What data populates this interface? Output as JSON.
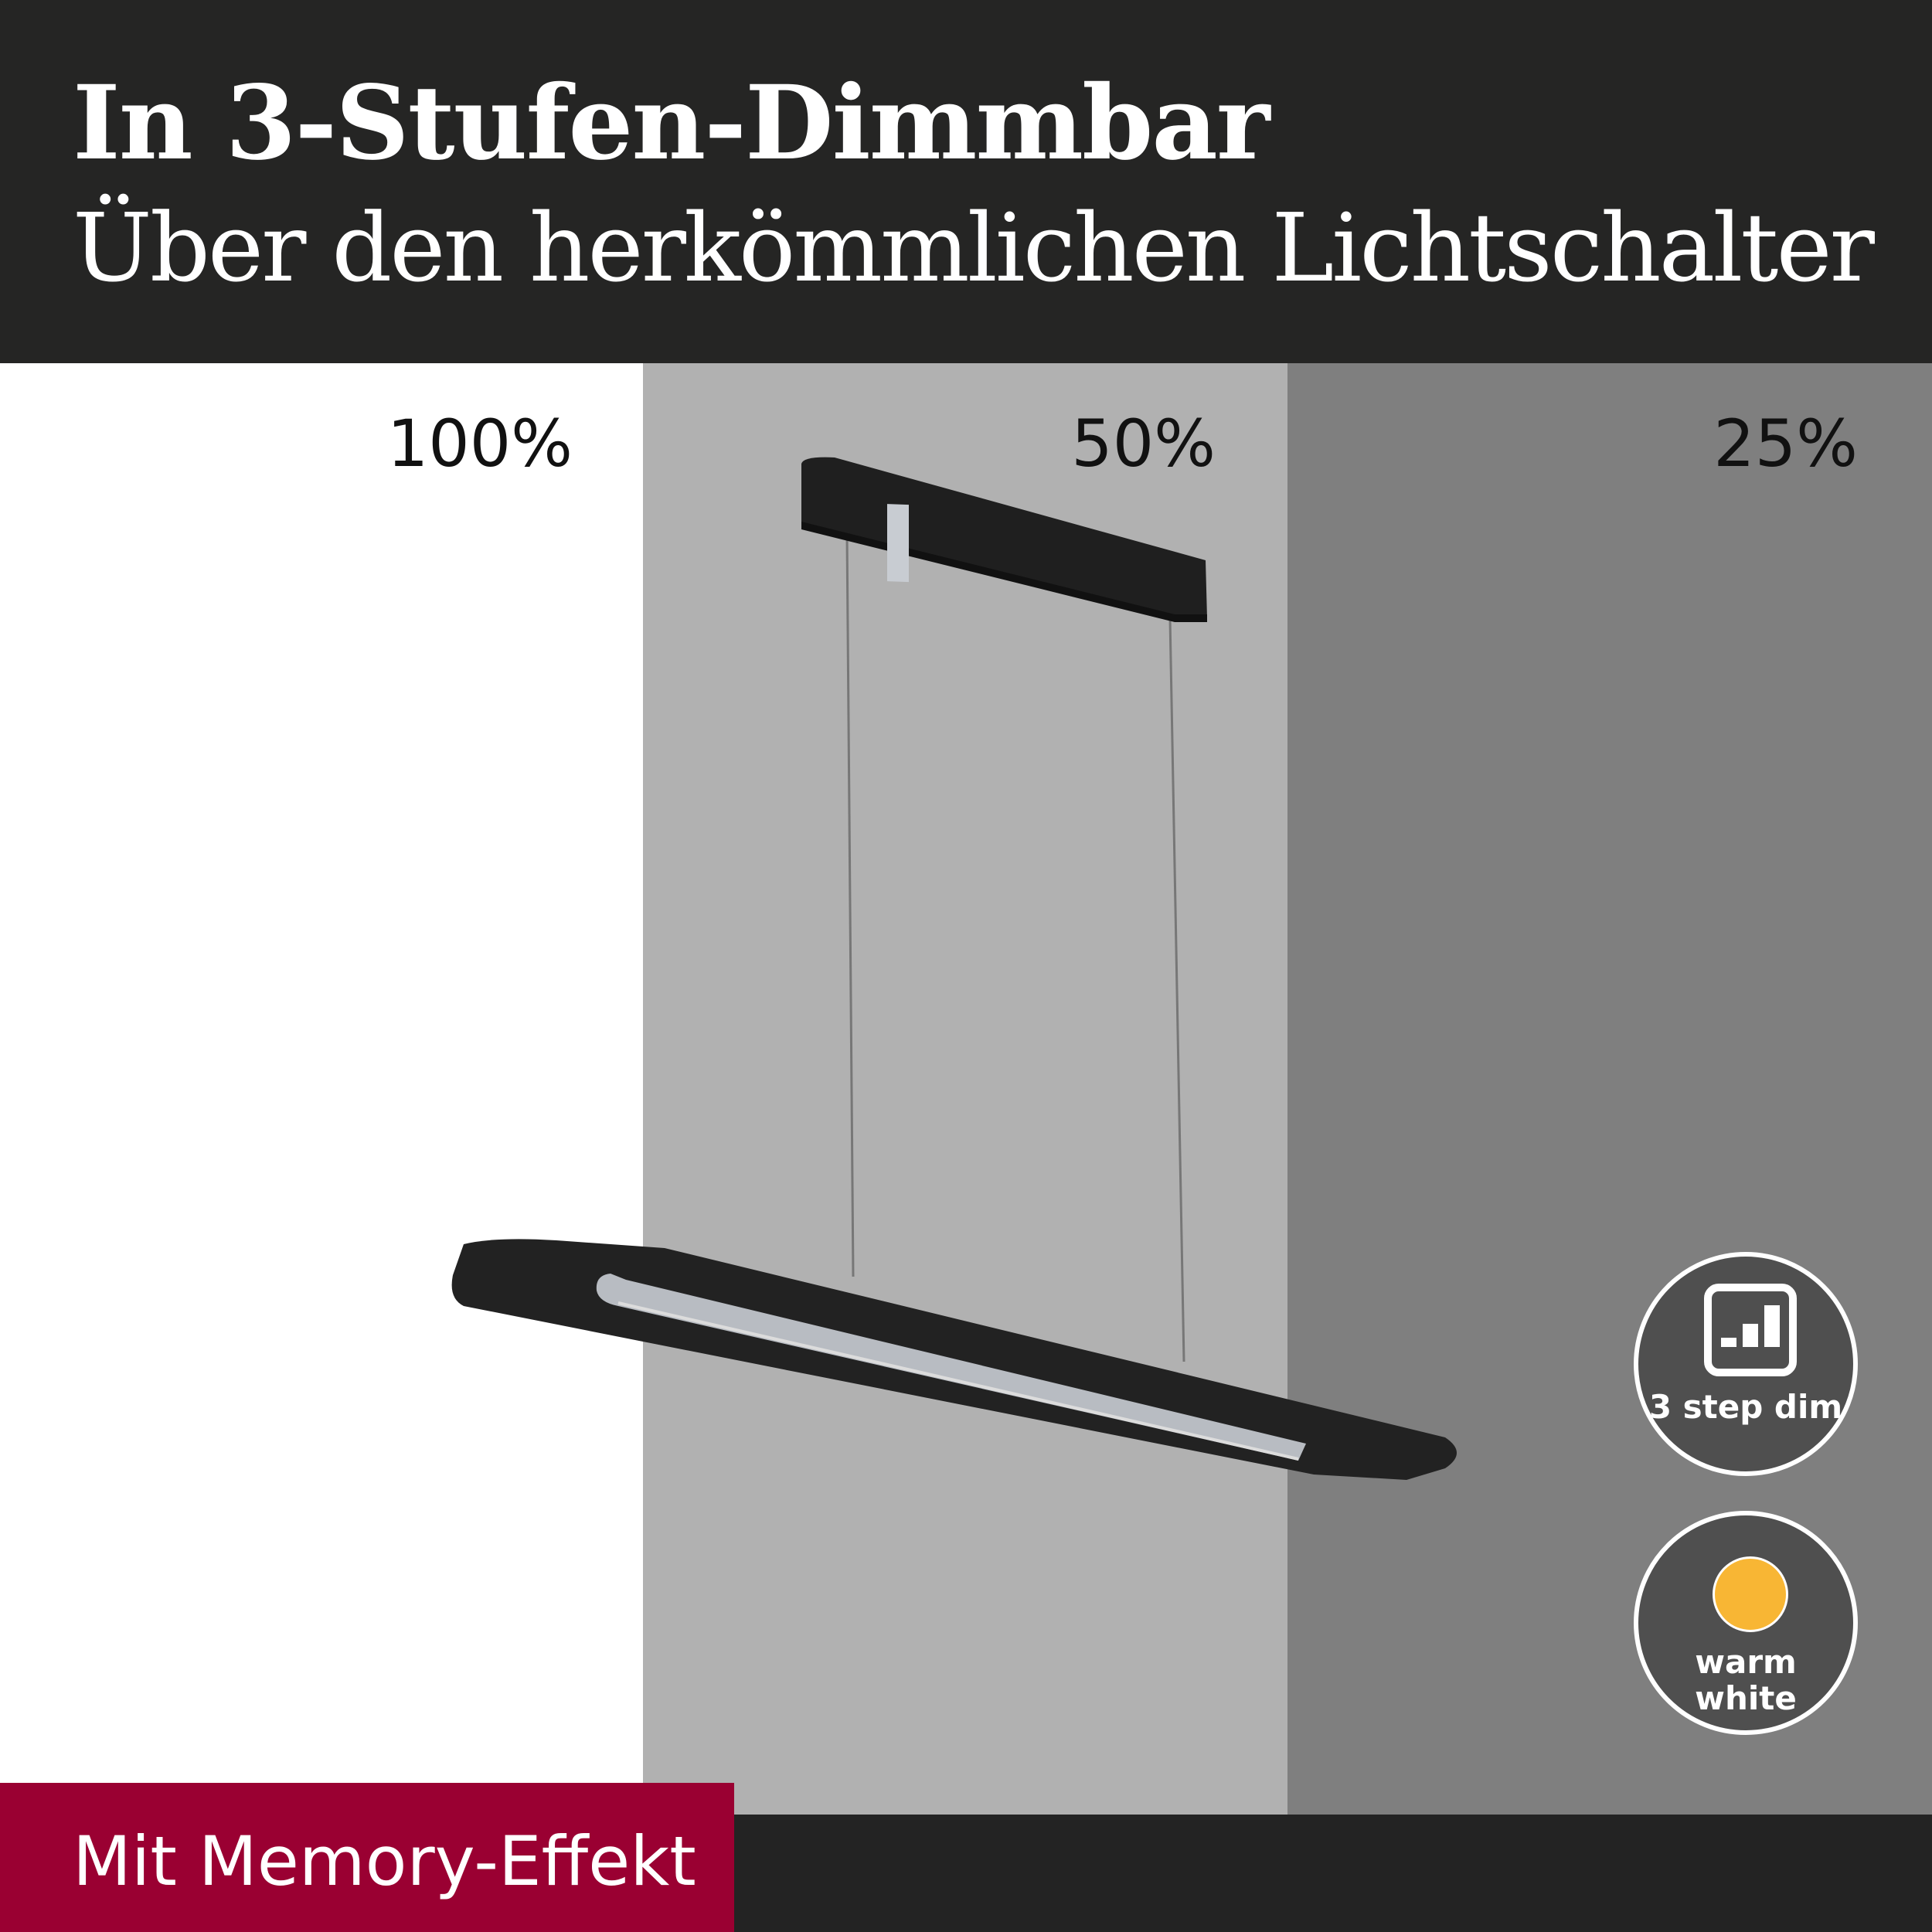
{
  "header": {
    "title": "In 3-Stufen-Dimmbar",
    "subtitle": "Über den herkömmlichen Lichtschalter"
  },
  "panels": [
    {
      "label": "100%",
      "color": "#ffffff"
    },
    {
      "label": "50%",
      "color": "#b1b1b1"
    },
    {
      "label": "25%",
      "color": "#7f7f7f"
    }
  ],
  "badges": {
    "dim": {
      "label": "3 step dim",
      "icon": "signal-bars-icon"
    },
    "warm": {
      "line1": "warm",
      "line2": "white",
      "icon": "warm-light-dot-icon",
      "dot_color": "#f8b634"
    }
  },
  "footer": {
    "memory_label": "Mit Memory-Effekt",
    "accent": "#9a0032"
  }
}
